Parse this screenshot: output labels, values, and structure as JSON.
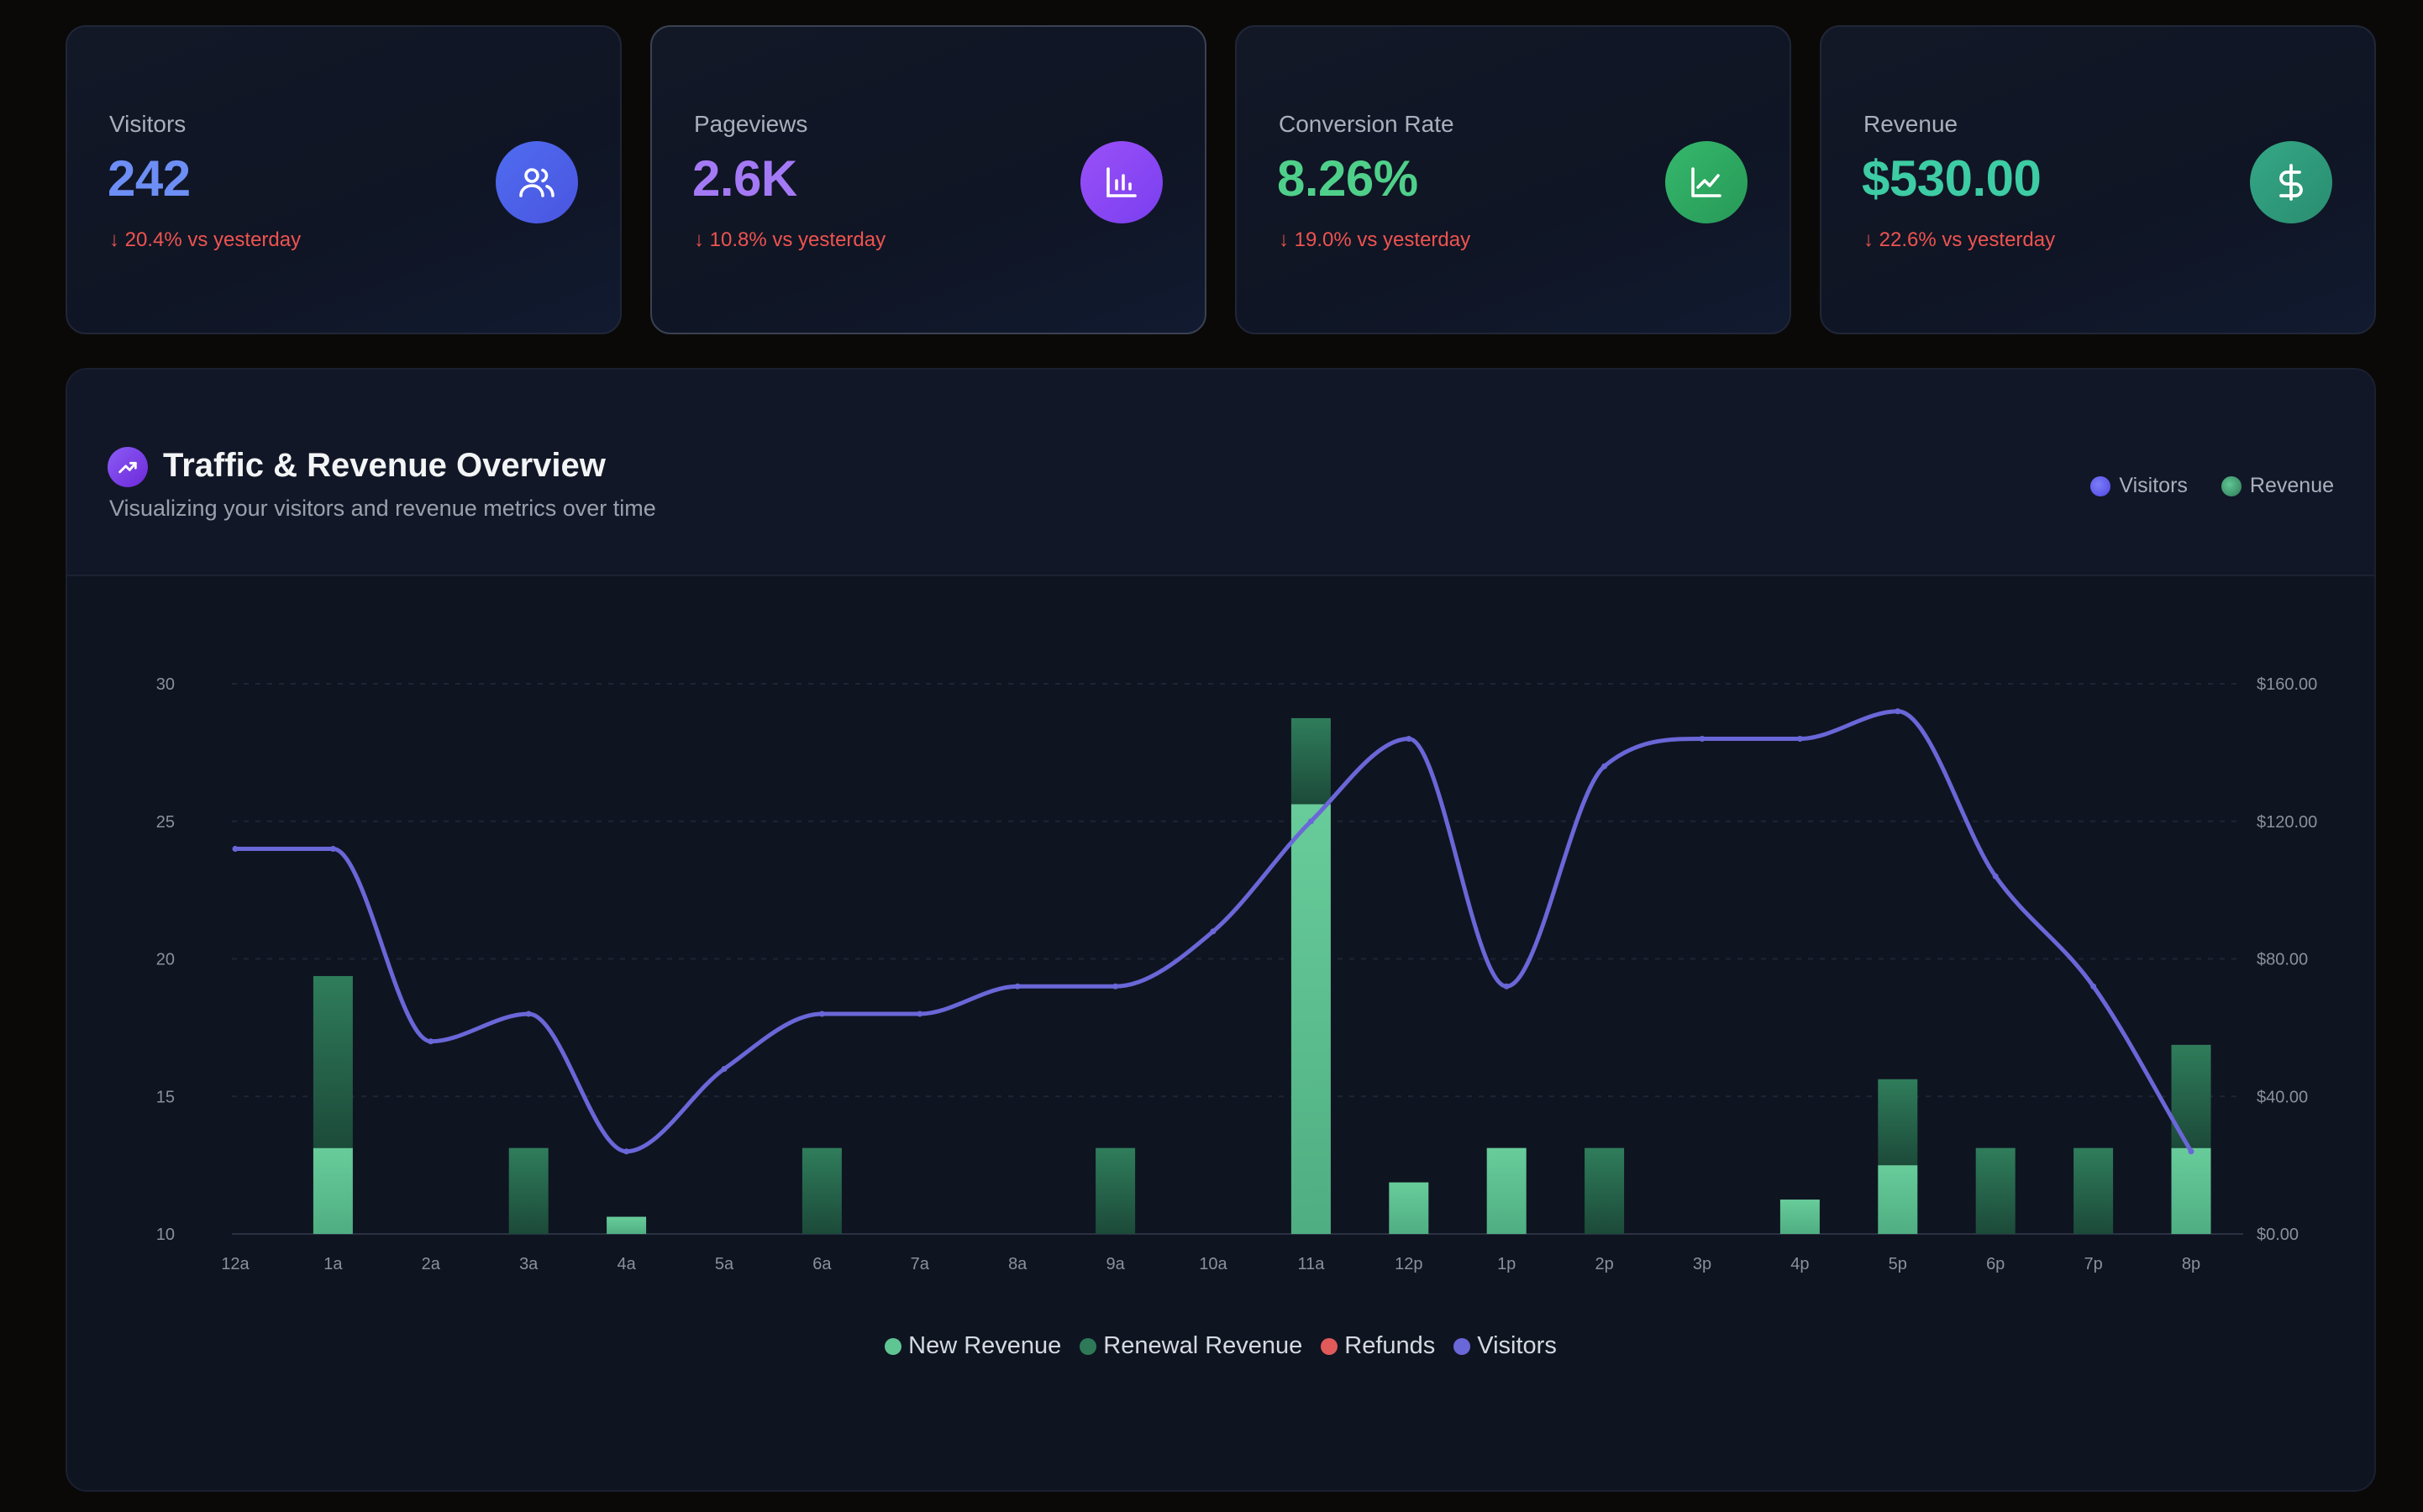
{
  "stats": [
    {
      "label": "Visitors",
      "value": "242",
      "delta": "↓ 20.4% vs yesterday",
      "color": "#6d8ef5",
      "icon": "users-icon",
      "icon_bg": "#4c62e8"
    },
    {
      "label": "Pageviews",
      "value": "2.6K",
      "delta": "↓ 10.8% vs yesterday",
      "color": "#a479f5",
      "icon": "bar-chart-icon",
      "icon_bg": "#8b46f3"
    },
    {
      "label": "Conversion Rate",
      "value": "8.26%",
      "delta": "↓ 19.0% vs yesterday",
      "color": "#4fd08a",
      "icon": "line-chart-icon",
      "icon_bg": "#2fa763"
    },
    {
      "label": "Revenue",
      "value": "$530.00",
      "delta": "↓ 22.6% vs yesterday",
      "color": "#3dcca4",
      "icon": "dollar-icon",
      "icon_bg": "#2f9b7d"
    }
  ],
  "panel": {
    "title": "Traffic & Revenue Overview",
    "subtitle": "Visualizing your visitors and revenue metrics over time",
    "top_legend": [
      {
        "label": "Visitors",
        "color": "#6366f1"
      },
      {
        "label": "Revenue",
        "color": "#3fae82"
      }
    ]
  },
  "legend": [
    {
      "label": "New Revenue",
      "color": "#5fc593"
    },
    {
      "label": "Renewal Revenue",
      "color": "#2e7a58"
    },
    {
      "label": "Refunds",
      "color": "#e05a5a"
    },
    {
      "label": "Visitors",
      "color": "#6a67d8"
    }
  ],
  "chart_data": {
    "type": "bar",
    "categories": [
      "12a",
      "1a",
      "2a",
      "3a",
      "4a",
      "5a",
      "6a",
      "7a",
      "8a",
      "9a",
      "10a",
      "11a",
      "12p",
      "1p",
      "2p",
      "3p",
      "4p",
      "5p",
      "6p",
      "7p",
      "8p"
    ],
    "series": [
      {
        "name": "New Revenue",
        "type": "bar",
        "axis": "right",
        "stack": "revenue",
        "color": "#5fc593",
        "values": [
          0,
          25,
          0,
          0,
          5,
          0,
          0,
          0,
          0,
          0,
          0,
          125,
          15,
          25,
          0,
          0,
          10,
          20,
          0,
          0,
          25
        ]
      },
      {
        "name": "Renewal Revenue",
        "type": "bar",
        "axis": "right",
        "stack": "revenue",
        "color": "#2e7a58",
        "values": [
          0,
          50,
          0,
          25,
          0,
          0,
          25,
          0,
          0,
          25,
          0,
          25,
          0,
          0,
          25,
          0,
          0,
          25,
          25,
          25,
          30
        ]
      },
      {
        "name": "Refunds",
        "type": "bar",
        "axis": "right",
        "stack": "revenue",
        "color": "#e05a5a",
        "values": [
          0,
          0,
          0,
          0,
          0,
          0,
          0,
          0,
          0,
          0,
          0,
          0,
          0,
          0,
          0,
          0,
          0,
          0,
          0,
          0,
          0
        ]
      },
      {
        "name": "Visitors",
        "type": "line",
        "axis": "left",
        "color": "#6a67d8",
        "values": [
          24,
          24,
          17,
          18,
          13,
          16,
          18,
          18,
          19,
          19,
          21,
          25,
          28,
          19,
          27,
          28,
          28,
          29,
          23,
          19,
          13
        ]
      }
    ],
    "y_left": {
      "ticks": [
        "10",
        "15",
        "20",
        "25",
        "30"
      ],
      "ylim": [
        10,
        30
      ]
    },
    "y_right": {
      "ticks": [
        "$0.00",
        "$40.00",
        "$80.00",
        "$120.00",
        "$160.00"
      ],
      "ylim": [
        0,
        160
      ]
    },
    "grid": true,
    "legend_position": "bottom"
  }
}
